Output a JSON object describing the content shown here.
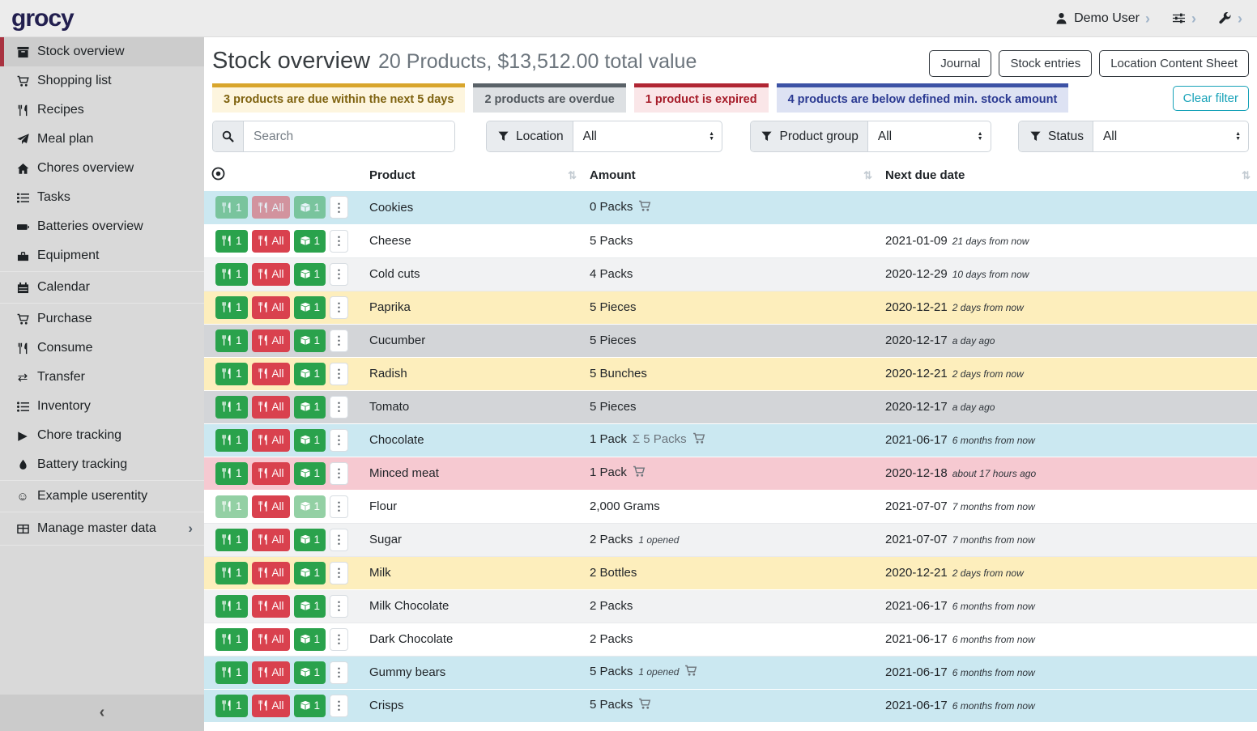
{
  "brand": "grocy",
  "topbar": {
    "user": "Demo User"
  },
  "sidebar": {
    "items": [
      {
        "label": "Stock overview",
        "icon": "box",
        "active": true
      },
      {
        "label": "Shopping list",
        "icon": "cart"
      },
      {
        "label": "Recipes",
        "icon": "utensils"
      },
      {
        "label": "Meal plan",
        "icon": "paper-plane"
      },
      {
        "label": "Chores overview",
        "icon": "home"
      },
      {
        "label": "Tasks",
        "icon": "tasks"
      },
      {
        "label": "Batteries overview",
        "icon": "battery"
      },
      {
        "label": "Equipment",
        "icon": "toolbox",
        "divider_after": true
      },
      {
        "label": "Calendar",
        "icon": "calendar",
        "divider_after": true
      },
      {
        "label": "Purchase",
        "icon": "cart"
      },
      {
        "label": "Consume",
        "icon": "utensils"
      },
      {
        "label": "Transfer",
        "icon": "transfer"
      },
      {
        "label": "Inventory",
        "icon": "inventory"
      },
      {
        "label": "Chore tracking",
        "icon": "play"
      },
      {
        "label": "Battery tracking",
        "icon": "flame",
        "divider_after": true
      },
      {
        "label": "Example userentity",
        "icon": "smiley",
        "divider_after": true
      },
      {
        "label": "Manage master data",
        "icon": "grid",
        "chevron": true,
        "divider_after": true
      }
    ]
  },
  "header": {
    "title": "Stock overview",
    "subtitle": "20 Products, $13,512.00 total value",
    "buttons": [
      "Journal",
      "Stock entries",
      "Location Content Sheet"
    ]
  },
  "banners": [
    {
      "text": "3 products are due within the next 5 days",
      "variant": "warning"
    },
    {
      "text": "2 products are overdue",
      "variant": "overdue"
    },
    {
      "text": "1 product is expired",
      "variant": "expired"
    },
    {
      "text": "4 products are below defined min. stock amount",
      "variant": "belowmin"
    }
  ],
  "clear_filter_label": "Clear filter",
  "filters": {
    "search_placeholder": "Search",
    "groups": [
      {
        "label": "Location",
        "value": "All"
      },
      {
        "label": "Product group",
        "value": "All"
      },
      {
        "label": "Status",
        "value": "All"
      }
    ]
  },
  "table": {
    "columns": [
      "Product",
      "Amount",
      "Next due date"
    ],
    "row_buttons": {
      "consume_one": "1",
      "consume_all": "All",
      "open_one": "1"
    },
    "sum_prefix": "Σ",
    "rows": [
      {
        "product": "Cookies",
        "amount": "0 Packs",
        "cart": true,
        "date": "",
        "relative": "",
        "variant": "info",
        "muted": "all"
      },
      {
        "product": "Cheese",
        "amount": "5 Packs",
        "date": "2021-01-09",
        "relative": "21 days from now",
        "variant": "none"
      },
      {
        "product": "Cold cuts",
        "amount": "4 Packs",
        "date": "2020-12-29",
        "relative": "10 days from now",
        "variant": "stripe"
      },
      {
        "product": "Paprika",
        "amount": "5 Pieces",
        "date": "2020-12-21",
        "relative": "2 days from now",
        "variant": "warning"
      },
      {
        "product": "Cucumber",
        "amount": "5 Pieces",
        "date": "2020-12-17",
        "relative": "a day ago",
        "variant": "secondary"
      },
      {
        "product": "Radish",
        "amount": "5 Bunches",
        "date": "2020-12-21",
        "relative": "2 days from now",
        "variant": "warning"
      },
      {
        "product": "Tomato",
        "amount": "5 Pieces",
        "date": "2020-12-17",
        "relative": "a day ago",
        "variant": "secondary"
      },
      {
        "product": "Chocolate",
        "amount": "1 Pack",
        "sum": "5 Packs",
        "cart": true,
        "date": "2021-06-17",
        "relative": "6 months from now",
        "variant": "info"
      },
      {
        "product": "Minced meat",
        "amount": "1 Pack",
        "cart": true,
        "date": "2020-12-18",
        "relative": "about 17 hours ago",
        "variant": "danger"
      },
      {
        "product": "Flour",
        "amount": "2,000 Grams",
        "date": "2021-07-07",
        "relative": "7 months from now",
        "variant": "none",
        "muted": "partial"
      },
      {
        "product": "Sugar",
        "amount": "2 Packs",
        "opened": "1 opened",
        "date": "2021-07-07",
        "relative": "7 months from now",
        "variant": "stripe"
      },
      {
        "product": "Milk",
        "amount": "2 Bottles",
        "date": "2020-12-21",
        "relative": "2 days from now",
        "variant": "warning"
      },
      {
        "product": "Milk Chocolate",
        "amount": "2 Packs",
        "date": "2021-06-17",
        "relative": "6 months from now",
        "variant": "stripe"
      },
      {
        "product": "Dark Chocolate",
        "amount": "2 Packs",
        "date": "2021-06-17",
        "relative": "6 months from now",
        "variant": "none"
      },
      {
        "product": "Gummy bears",
        "amount": "5 Packs",
        "opened": "1 opened",
        "cart": true,
        "date": "2021-06-17",
        "relative": "6 months from now",
        "variant": "info"
      },
      {
        "product": "Crisps",
        "amount": "5 Packs",
        "cart": true,
        "date": "2021-06-17",
        "relative": "6 months from now",
        "variant": "info"
      }
    ]
  }
}
